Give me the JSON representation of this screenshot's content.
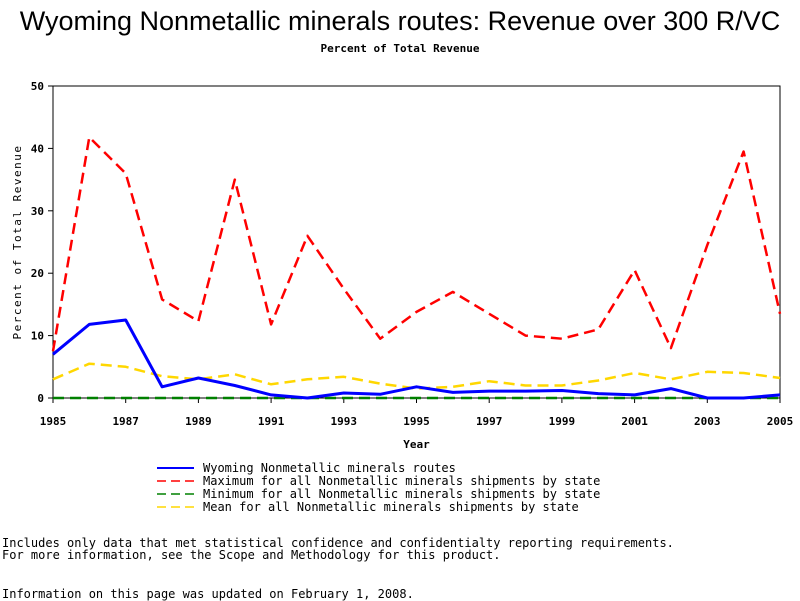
{
  "chart_data": {
    "type": "line",
    "title": "Wyoming Nonmetallic minerals routes: Revenue over 300 R/VC",
    "subtitle": "Percent of Total Revenue",
    "xlabel": "Year",
    "ylabel": "Percent of Total Revenue",
    "xlim": [
      1985,
      2005
    ],
    "ylim": [
      0,
      50
    ],
    "x_ticks": [
      "1985",
      "1987",
      "1989",
      "1991",
      "1993",
      "1995",
      "1997",
      "1999",
      "2001",
      "2003",
      "2005"
    ],
    "y_ticks": [
      "0",
      "10",
      "20",
      "30",
      "40",
      "50"
    ],
    "grid": false,
    "legend_position": "bottom",
    "x": [
      1985,
      1986,
      1987,
      1988,
      1989,
      1990,
      1991,
      1992,
      1993,
      1994,
      1995,
      1996,
      1997,
      1998,
      1999,
      2000,
      2001,
      2002,
      2003,
      2004,
      2005
    ],
    "series": [
      {
        "name": "Wyoming Nonmetallic minerals routes",
        "color": "#0000ff",
        "style": "solid",
        "values": [
          7.0,
          11.8,
          12.5,
          1.8,
          3.2,
          2.0,
          0.5,
          0.0,
          0.8,
          0.6,
          1.8,
          0.9,
          1.1,
          1.1,
          1.2,
          0.7,
          0.5,
          1.5,
          0.0,
          0.0,
          0.5
        ]
      },
      {
        "name": "Maximum for all Nonmetallic minerals shipments by state",
        "color": "#ff0000",
        "style": "dashed",
        "values": [
          7.5,
          41.8,
          36.0,
          15.8,
          12.3,
          35.0,
          11.8,
          26.0,
          17.5,
          9.5,
          13.8,
          17.0,
          13.5,
          10.0,
          9.5,
          11.0,
          20.5,
          8.0,
          24.5,
          39.5,
          13.5
        ]
      },
      {
        "name": "Minimum for all Nonmetallic minerals shipments by state",
        "color": "#008000",
        "style": "dashed",
        "values": [
          0,
          0,
          0,
          0,
          0,
          0,
          0,
          0,
          0,
          0,
          0,
          0,
          0,
          0,
          0,
          0,
          0,
          0,
          0,
          0,
          0
        ]
      },
      {
        "name": "Mean for all Nonmetallic minerals shipments by state",
        "color": "#ffd700",
        "style": "dashed",
        "values": [
          3.0,
          5.5,
          5.0,
          3.5,
          3.0,
          3.8,
          2.2,
          3.0,
          3.4,
          2.3,
          1.5,
          1.8,
          2.7,
          2.0,
          2.0,
          2.8,
          4.0,
          3.0,
          4.2,
          4.0,
          3.2
        ]
      }
    ]
  },
  "notes": {
    "line1": "Includes only data that met statistical confidence and confidentialty reporting requirements.",
    "line2": "For more information, see the Scope and Methodology for this product.",
    "line3": "Information on this page was updated on February 1, 2008."
  }
}
